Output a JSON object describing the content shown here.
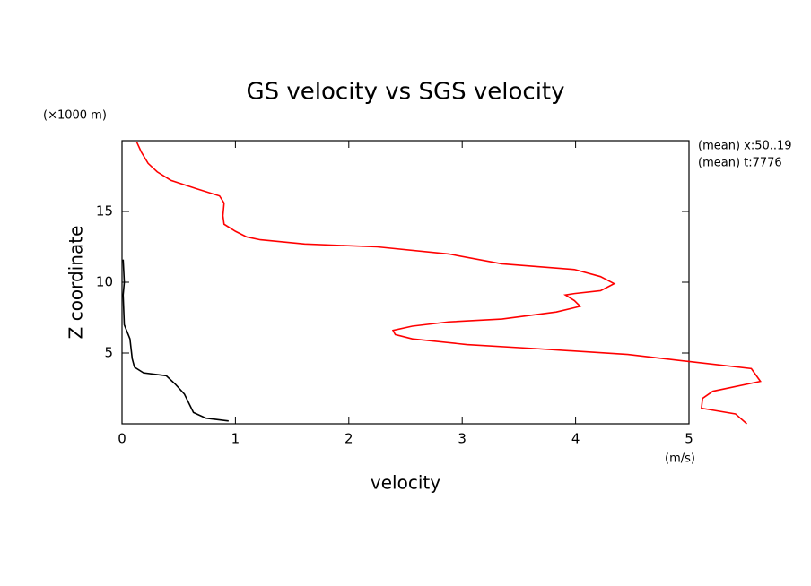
{
  "chart_data": {
    "type": "line",
    "title": "GS velocity vs SGS velocity",
    "ylabel": "Z coordinate",
    "yunit": "(×1000 m)",
    "xlabel": "velocity",
    "xunit": "(m/s)",
    "annotations": [
      "(mean) x:50..19",
      "(mean) t:7776"
    ],
    "xlim": [
      0,
      5
    ],
    "xticks": [
      0,
      1,
      2,
      3,
      4,
      5
    ],
    "ylim": [
      0,
      20
    ],
    "yticks": [
      5,
      10,
      15
    ],
    "series": [
      {
        "color": "#ff0000",
        "values": [
          5.51,
          5.41,
          5.11,
          5.12,
          5.21,
          5.63,
          5.55,
          5.0,
          4.46,
          3.67,
          3.04,
          2.56,
          2.41,
          2.39,
          2.56,
          2.88,
          3.35,
          3.83,
          4.04,
          3.99,
          3.91,
          3.99,
          4.22,
          4.34,
          4.22,
          3.99,
          3.35,
          2.88,
          2.25,
          1.61,
          1.22,
          1.1,
          1.0,
          0.9,
          0.89,
          0.9,
          0.86,
          0.66,
          0.43,
          0.31,
          0.23,
          0.17,
          0.13
        ],
        "y": [
          0,
          0.7,
          1.1,
          1.8,
          2.3,
          3.0,
          3.9,
          4.4,
          4.9,
          5.3,
          5.6,
          6.0,
          6.3,
          6.6,
          6.9,
          7.2,
          7.4,
          7.9,
          8.3,
          8.7,
          9.1,
          9.2,
          9.4,
          9.9,
          10.4,
          10.9,
          11.3,
          12.0,
          12.5,
          12.7,
          13.0,
          13.2,
          13.6,
          14.1,
          14.7,
          15.6,
          16.1,
          16.6,
          17.2,
          17.8,
          18.4,
          19.2,
          19.9
        ]
      },
      {
        "color": "#000000",
        "values": [
          0.94,
          0.74,
          0.63,
          0.55,
          0.47,
          0.39,
          0.19,
          0.11,
          0.09,
          0.07,
          0.02,
          0.01,
          0.02,
          0.01
        ],
        "y": [
          0.2,
          0.4,
          0.8,
          2.1,
          2.8,
          3.4,
          3.6,
          4.0,
          4.6,
          6.0,
          7.0,
          9.1,
          10.0,
          11.6
        ]
      }
    ]
  }
}
